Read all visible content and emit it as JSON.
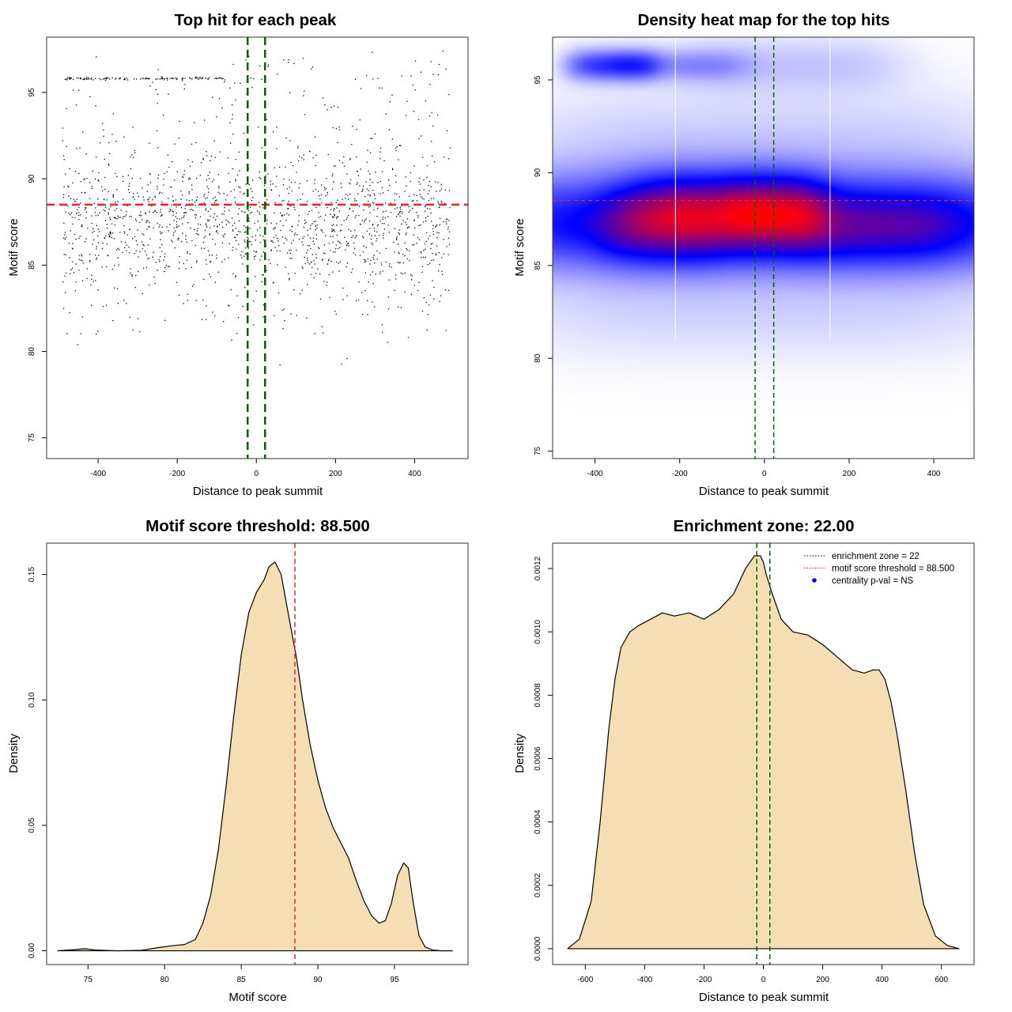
{
  "chart_data": [
    {
      "id": "scatter",
      "type": "scatter",
      "title": "Top hit for each peak",
      "xlabel": "Distance to peak summit",
      "ylabel": "Motif score",
      "xlim": [
        -530,
        535
      ],
      "ylim": [
        73.8,
        98.2
      ],
      "xticks": [
        -400,
        -200,
        0,
        200,
        400
      ],
      "yticks": [
        75,
        80,
        85,
        90,
        95
      ],
      "threshold_y": 88.5,
      "zone_x": [
        -22,
        22
      ],
      "point_groups": [
        {
          "x_range": [
            -490,
            490
          ],
          "y_center": 87.3,
          "y_sd": 1.8,
          "count": 1300
        },
        {
          "x_range": [
            -490,
            490
          ],
          "y_center": 91.5,
          "y_sd": 2.4,
          "count": 220
        },
        {
          "x_range": [
            -490,
            490
          ],
          "y_center": 83.0,
          "y_sd": 1.6,
          "count": 120
        },
        {
          "x_range": [
            -485,
            -80
          ],
          "y_center": 95.8,
          "y_sd": 0.04,
          "count": 120
        },
        {
          "x_range": [
            -80,
            480
          ],
          "y_center": 95.9,
          "y_sd": 0.9,
          "count": 45
        }
      ],
      "colors": {
        "points": "#000000",
        "threshold": "#e32626",
        "zone": "#006400"
      }
    },
    {
      "id": "heatmap",
      "type": "heatmap",
      "title": "Density heat map for the top hits",
      "xlabel": "Distance to peak summit",
      "ylabel": "Motif score",
      "xlim": [
        -500,
        495
      ],
      "ylim": [
        74.6,
        97.3
      ],
      "xticks": [
        -400,
        -200,
        0,
        200,
        400
      ],
      "yticks": [
        75,
        80,
        85,
        90,
        95
      ],
      "threshold_y": 88.5,
      "zone_x": [
        -22,
        22
      ],
      "white_lines_x": [
        -210,
        155
      ],
      "blobs": [
        {
          "x": 0,
          "y": 87.3,
          "sx": 520,
          "sy": 1.7,
          "w": 1.0
        },
        {
          "x": -90,
          "y": 88.0,
          "sx": 170,
          "sy": 1.3,
          "w": 0.75
        },
        {
          "x": 20,
          "y": 87.7,
          "sx": 90,
          "sy": 1.2,
          "w": 0.45
        },
        {
          "x": -240,
          "y": 87.0,
          "sx": 110,
          "sy": 1.3,
          "w": 0.35
        },
        {
          "x": 270,
          "y": 87.0,
          "sx": 140,
          "sy": 1.3,
          "w": 0.3
        },
        {
          "x": -360,
          "y": 95.8,
          "sx": 80,
          "sy": 0.55,
          "w": 0.55
        },
        {
          "x": -220,
          "y": 95.8,
          "sx": 130,
          "sy": 0.55,
          "w": 0.25
        },
        {
          "x": 50,
          "y": 95.8,
          "sx": 200,
          "sy": 1.0,
          "w": 0.12
        },
        {
          "x": 0,
          "y": 91.5,
          "sx": 420,
          "sy": 2.0,
          "w": 0.1
        },
        {
          "x": 0,
          "y": 82.5,
          "sx": 420,
          "sy": 1.6,
          "w": 0.08
        }
      ],
      "colors": {
        "low": "#ffffff",
        "mid": "#0000ff",
        "high": "#ff0000",
        "threshold": "#e32626",
        "zone": "#006400"
      }
    },
    {
      "id": "score-density",
      "type": "area",
      "title": "Motif score threshold: 88.500",
      "xlabel": "Motif score",
      "ylabel": "Density",
      "xlim": [
        72.3,
        99.8
      ],
      "ylim": [
        -0.0055,
        0.1625
      ],
      "xticks": [
        75,
        80,
        85,
        90,
        95
      ],
      "yticks": [
        0.0,
        0.05,
        0.1,
        0.15
      ],
      "ytick_labels": [
        "0.00",
        "0.05",
        "0.10",
        "0.15"
      ],
      "threshold_x": 88.5,
      "x": [
        73.0,
        74.0,
        74.8,
        75.5,
        77.0,
        78.5,
        79.5,
        80.5,
        81.3,
        82.0,
        82.5,
        83.0,
        83.5,
        84.0,
        84.5,
        85.0,
        85.5,
        86.0,
        86.5,
        86.8,
        87.2,
        87.6,
        87.9,
        88.2,
        88.6,
        89.0,
        89.5,
        90.0,
        90.5,
        91.0,
        91.5,
        92.0,
        92.5,
        93.0,
        93.5,
        94.0,
        94.4,
        94.8,
        95.2,
        95.6,
        95.9,
        96.2,
        96.6,
        97.0,
        97.5,
        98.0,
        98.8
      ],
      "y": [
        0.0,
        0.0004,
        0.0008,
        0.0003,
        0.0,
        0.0002,
        0.0012,
        0.002,
        0.0025,
        0.0045,
        0.011,
        0.022,
        0.04,
        0.065,
        0.093,
        0.118,
        0.135,
        0.143,
        0.148,
        0.153,
        0.155,
        0.15,
        0.14,
        0.13,
        0.117,
        0.1,
        0.082,
        0.068,
        0.057,
        0.049,
        0.043,
        0.037,
        0.028,
        0.02,
        0.014,
        0.011,
        0.012,
        0.019,
        0.03,
        0.035,
        0.033,
        0.02,
        0.006,
        0.0015,
        0.0003,
        0.0,
        0.0
      ],
      "colors": {
        "fill": "#f5deb3",
        "line": "#000000",
        "threshold": "#e32626"
      }
    },
    {
      "id": "distance-density",
      "type": "area",
      "title": "Enrichment zone: 22.00",
      "xlabel": "Distance to peak summit",
      "ylabel": "Density",
      "xlim": [
        -710,
        710
      ],
      "ylim": [
        -5e-05,
        0.00128
      ],
      "xticks": [
        -600,
        -400,
        -200,
        0,
        200,
        400,
        600
      ],
      "yticks": [
        0.0,
        0.0002,
        0.0004,
        0.0006,
        0.0008,
        0.001,
        0.0012
      ],
      "ytick_labels": [
        "0.0000",
        "0.0002",
        "0.0004",
        "0.0006",
        "0.0008",
        "0.0010",
        "0.0012"
      ],
      "zone_x": [
        -22,
        22
      ],
      "x": [
        -660,
        -620,
        -580,
        -550,
        -520,
        -500,
        -480,
        -450,
        -420,
        -380,
        -340,
        -300,
        -250,
        -200,
        -150,
        -100,
        -60,
        -30,
        -10,
        0,
        10,
        30,
        60,
        100,
        150,
        200,
        250,
        300,
        340,
        370,
        390,
        410,
        430,
        450,
        480,
        510,
        540,
        580,
        620,
        660
      ],
      "y": [
        0.0,
        3e-05,
        0.00015,
        0.0004,
        0.0007,
        0.00085,
        0.00095,
        0.001,
        0.00102,
        0.00104,
        0.00106,
        0.00105,
        0.00106,
        0.00104,
        0.00107,
        0.00112,
        0.0012,
        0.00124,
        0.00124,
        0.00122,
        0.00118,
        0.00112,
        0.00104,
        0.001,
        0.00099,
        0.00096,
        0.00092,
        0.00088,
        0.00087,
        0.00088,
        0.00088,
        0.00085,
        0.00078,
        0.00068,
        0.0005,
        0.0003,
        0.00014,
        4e-05,
        1e-05,
        0.0
      ],
      "legend": [
        {
          "label": "enrichment zone = 22",
          "kind": "dotted",
          "color": "#006400"
        },
        {
          "label": "motif score threshold = 88.500",
          "kind": "dotted",
          "color": "#e32626"
        },
        {
          "label": "centrality p-val = NS",
          "kind": "point",
          "color": "#0000ff"
        }
      ],
      "colors": {
        "fill": "#f5deb3",
        "line": "#000000",
        "zone": "#006400"
      }
    }
  ]
}
